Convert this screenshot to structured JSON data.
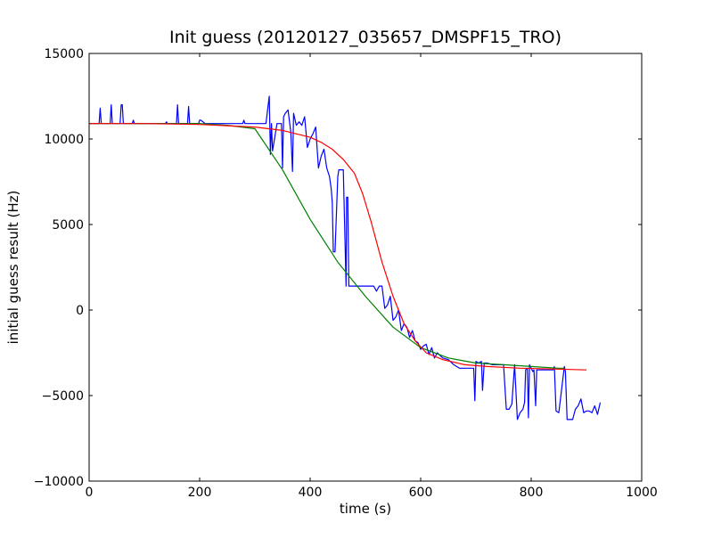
{
  "chart_data": {
    "type": "line",
    "title": "Init guess (20120127_035657_DMSPF15_TRO)",
    "xlabel": "time (s)",
    "ylabel": "initial guess result (Hz)",
    "xlim": [
      0,
      1000
    ],
    "ylim": [
      -10000,
      15000
    ],
    "xticks": [
      0,
      200,
      400,
      600,
      800,
      1000
    ],
    "xtick_labels": [
      "0",
      "200",
      "400",
      "600",
      "800",
      "1000"
    ],
    "yticks": [
      -10000,
      -5000,
      0,
      5000,
      10000,
      15000
    ],
    "ytick_labels": [
      "−10000",
      "−5000",
      "0",
      "5000",
      "10000",
      "15000"
    ],
    "grid": false,
    "series": [
      {
        "color": "#0000ff",
        "x": [
          0,
          10,
          18,
          20,
          22,
          30,
          38,
          40,
          42,
          50,
          56,
          58,
          60,
          62,
          70,
          78,
          80,
          82,
          90,
          100,
          110,
          120,
          130,
          138,
          140,
          142,
          150,
          158,
          160,
          162,
          170,
          178,
          180,
          182,
          190,
          198,
          200,
          202,
          210,
          220,
          230,
          240,
          250,
          260,
          270,
          278,
          280,
          282,
          290,
          300,
          310,
          320,
          326,
          328,
          330,
          332,
          340,
          348,
          350,
          352,
          355,
          360,
          365,
          368,
          370,
          375,
          380,
          385,
          390,
          395,
          400,
          405,
          410,
          415,
          420,
          425,
          430,
          435,
          438,
          440,
          442,
          445,
          450,
          452,
          455,
          460,
          465,
          466,
          468,
          470,
          472,
          475,
          480,
          490,
          500,
          510,
          515,
          520,
          525,
          530,
          535,
          540,
          545,
          550,
          555,
          560,
          565,
          570,
          575,
          580,
          585,
          590,
          595,
          600,
          605,
          610,
          615,
          620,
          625,
          630,
          640,
          650,
          660,
          670,
          680,
          690,
          696,
          698,
          700,
          705,
          710,
          712,
          715,
          720,
          730,
          740,
          750,
          755,
          760,
          765,
          770,
          775,
          780,
          785,
          788,
          790,
          793,
          795,
          797,
          800,
          803,
          805,
          808,
          810,
          820,
          840,
          842,
          845,
          850,
          860,
          862,
          865,
          870,
          875,
          880,
          885,
          890,
          895,
          900,
          905,
          910,
          915,
          920,
          925
        ],
        "y": [
          10900,
          10900,
          10900,
          11800,
          10900,
          10900,
          10900,
          12000,
          10900,
          10900,
          10900,
          12000,
          12000,
          10900,
          10900,
          10900,
          11100,
          10900,
          10900,
          10900,
          10900,
          10900,
          10900,
          10900,
          11000,
          10900,
          10900,
          10900,
          12000,
          10900,
          10900,
          10900,
          11900,
          10900,
          10900,
          10900,
          11100,
          11100,
          10900,
          10900,
          10900,
          10900,
          10900,
          10900,
          10900,
          10900,
          11100,
          10900,
          10900,
          10900,
          10900,
          10900,
          12500,
          9100,
          10900,
          9300,
          10900,
          10900,
          8300,
          11300,
          11500,
          11700,
          10400,
          8100,
          11500,
          10800,
          11000,
          10800,
          11300,
          9500,
          10000,
          10300,
          10700,
          8300,
          9000,
          9400,
          8300,
          7800,
          7100,
          6300,
          3400,
          3400,
          7800,
          8200,
          8200,
          8200,
          1400,
          6600,
          6600,
          1400,
          1400,
          1400,
          1400,
          1400,
          1400,
          1400,
          1400,
          1100,
          1400,
          1400,
          100,
          300,
          800,
          -600,
          -400,
          0,
          -1200,
          -800,
          -1000,
          -1600,
          -1200,
          -1800,
          -1900,
          -2300,
          -2100,
          -2000,
          -2600,
          -2200,
          -2800,
          -2500,
          -2800,
          -2900,
          -3200,
          -3400,
          -3400,
          -3400,
          -3400,
          -5300,
          -3000,
          -3100,
          -3000,
          -4700,
          -3100,
          -3100,
          -3200,
          -3200,
          -3200,
          -5800,
          -5800,
          -5500,
          -3200,
          -6400,
          -6000,
          -5800,
          -5400,
          -3500,
          -3400,
          -6300,
          -3200,
          -3400,
          -3600,
          -3500,
          -5600,
          -3500,
          -3500,
          -3500,
          -3300,
          -5900,
          -6000,
          -3300,
          -3600,
          -6400,
          -6400,
          -6400,
          -5800,
          -5600,
          -5200,
          -6000,
          -5900,
          -5900,
          -6000,
          -5600,
          -6100,
          -5400
        ]
      },
      {
        "color": "#008000",
        "x": [
          0,
          100,
          200,
          250,
          300,
          350,
          400,
          450,
          500,
          550,
          600,
          650,
          700,
          750,
          800,
          850,
          860
        ],
        "y": [
          10900,
          10900,
          10900,
          10800,
          10600,
          8200,
          5300,
          2800,
          800,
          -1000,
          -2200,
          -2800,
          -3100,
          -3200,
          -3300,
          -3400,
          -3400
        ]
      },
      {
        "color": "#ff0000",
        "x": [
          0,
          100,
          200,
          300,
          350,
          400,
          420,
          440,
          460,
          480,
          495,
          510,
          530,
          550,
          570,
          590,
          610,
          640,
          680,
          720,
          780,
          840,
          900
        ],
        "y": [
          10900,
          10900,
          10850,
          10700,
          10500,
          10100,
          9800,
          9400,
          8800,
          8000,
          6800,
          5200,
          2800,
          800,
          -800,
          -1800,
          -2500,
          -2900,
          -3200,
          -3300,
          -3400,
          -3450,
          -3500
        ]
      }
    ]
  }
}
